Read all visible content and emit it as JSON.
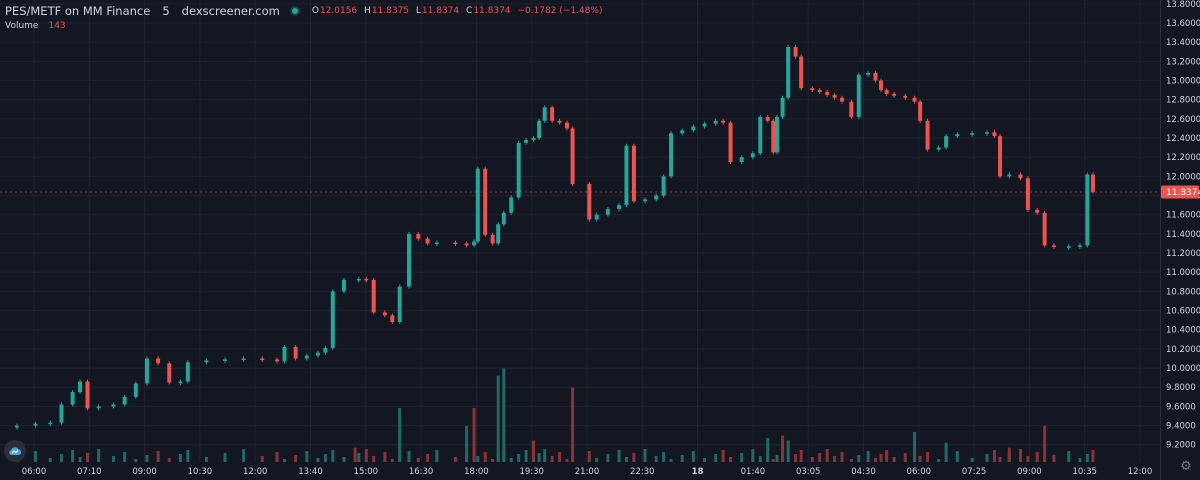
{
  "legend": {
    "symbol": "PES/METF on MM Finance",
    "interval": "5",
    "source": "dexscreener.com",
    "open_key": "O",
    "open": "12.0156",
    "high_key": "H",
    "high": "11.8375",
    "low_key": "L",
    "low": "11.8374",
    "close_key": "C",
    "close": "11.8374",
    "change": "−0.1782 (−1.48%)",
    "volume_label": "Volume",
    "volume_value": "143"
  },
  "colors": {
    "background": "#131722",
    "grid": "#1f2330",
    "up": "#26a69a",
    "down": "#ef5350",
    "up_volume": "#1f6a62",
    "down_volume": "#8a3334",
    "axis_text": "#d1d4dc",
    "last_price_line": "#ef5350"
  },
  "icons": {
    "logo": "dexscreener-logo-icon",
    "settings": "gear-icon"
  },
  "chart_data": {
    "type": "candlestick",
    "symbol": "PES/METF",
    "y_axis": {
      "ticks": [
        "13.8000",
        "13.6000",
        "13.4000",
        "13.2000",
        "13.0000",
        "12.8000",
        "12.6000",
        "12.4000",
        "12.2000",
        "12.0000",
        "11.8000",
        "11.6000",
        "11.4000",
        "11.2000",
        "11.0000",
        "10.8000",
        "10.6000",
        "10.4000",
        "10.2000",
        "10.0000",
        "9.8000",
        "9.6000",
        "9.4000",
        "9.2000"
      ],
      "range": [
        9.02,
        13.84
      ]
    },
    "x_axis": {
      "labels": [
        "06:00",
        "07:10",
        "09:00",
        "10:30",
        "12:00",
        "13:40",
        "15:00",
        "16:30",
        "18:00",
        "19:30",
        "21:00",
        "22:30",
        "18",
        "01:40",
        "03:05",
        "04:30",
        "06:00",
        "07:25",
        "09:00",
        "10:35",
        "12:00"
      ],
      "bold_labels": [
        "18"
      ],
      "time_range_hours": [
        0,
        31.1
      ]
    },
    "last_price": 11.8374,
    "last_price_label": "11.8374",
    "grid": true,
    "price_series": [
      {
        "t": 0.0,
        "p": 9.38
      },
      {
        "t": 0.4,
        "p": 9.4
      },
      {
        "t": 0.9,
        "p": 9.42
      },
      {
        "t": 1.3,
        "p": 9.43
      },
      {
        "t": 1.6,
        "p": 9.62
      },
      {
        "t": 1.9,
        "p": 9.75
      },
      {
        "t": 2.1,
        "p": 9.86
      },
      {
        "t": 2.3,
        "p": 9.58
      },
      {
        "t": 2.6,
        "p": 9.6
      },
      {
        "t": 3.0,
        "p": 9.62
      },
      {
        "t": 3.3,
        "p": 9.7
      },
      {
        "t": 3.6,
        "p": 9.84
      },
      {
        "t": 3.9,
        "p": 10.1
      },
      {
        "t": 4.2,
        "p": 10.05
      },
      {
        "t": 4.5,
        "p": 9.85
      },
      {
        "t": 4.8,
        "p": 9.86
      },
      {
        "t": 5.0,
        "p": 10.06
      },
      {
        "t": 5.5,
        "p": 10.08
      },
      {
        "t": 6.0,
        "p": 10.09
      },
      {
        "t": 6.5,
        "p": 10.1
      },
      {
        "t": 7.0,
        "p": 10.09
      },
      {
        "t": 7.4,
        "p": 10.07
      },
      {
        "t": 7.6,
        "p": 10.22
      },
      {
        "t": 7.9,
        "p": 10.1
      },
      {
        "t": 8.2,
        "p": 10.13
      },
      {
        "t": 8.5,
        "p": 10.16
      },
      {
        "t": 8.7,
        "p": 10.21
      },
      {
        "t": 8.9,
        "p": 10.8
      },
      {
        "t": 9.2,
        "p": 10.92
      },
      {
        "t": 9.6,
        "p": 10.93
      },
      {
        "t": 9.8,
        "p": 10.92
      },
      {
        "t": 10.0,
        "p": 10.58
      },
      {
        "t": 10.3,
        "p": 10.55
      },
      {
        "t": 10.5,
        "p": 10.48
      },
      {
        "t": 10.7,
        "p": 10.85
      },
      {
        "t": 10.95,
        "p": 11.4
      },
      {
        "t": 11.2,
        "p": 11.35
      },
      {
        "t": 11.45,
        "p": 11.3
      },
      {
        "t": 11.7,
        "p": 11.31
      },
      {
        "t": 12.2,
        "p": 11.3
      },
      {
        "t": 12.5,
        "p": 11.28
      },
      {
        "t": 12.7,
        "p": 11.32
      },
      {
        "t": 12.8,
        "p": 12.08
      },
      {
        "t": 13.0,
        "p": 11.39
      },
      {
        "t": 13.2,
        "p": 11.3
      },
      {
        "t": 13.35,
        "p": 11.5
      },
      {
        "t": 13.5,
        "p": 11.62
      },
      {
        "t": 13.7,
        "p": 11.78
      },
      {
        "t": 13.9,
        "p": 12.35
      },
      {
        "t": 14.1,
        "p": 12.38
      },
      {
        "t": 14.3,
        "p": 12.4
      },
      {
        "t": 14.45,
        "p": 12.58
      },
      {
        "t": 14.6,
        "p": 12.72
      },
      {
        "t": 14.8,
        "p": 12.58
      },
      {
        "t": 15.0,
        "p": 12.56
      },
      {
        "t": 15.2,
        "p": 12.5
      },
      {
        "t": 15.35,
        "p": 11.92
      },
      {
        "t": 15.8,
        "p": 11.55
      },
      {
        "t": 16.0,
        "p": 11.6
      },
      {
        "t": 16.3,
        "p": 11.66
      },
      {
        "t": 16.6,
        "p": 11.7
      },
      {
        "t": 16.8,
        "p": 12.32
      },
      {
        "t": 17.0,
        "p": 11.74
      },
      {
        "t": 17.3,
        "p": 11.76
      },
      {
        "t": 17.6,
        "p": 11.8
      },
      {
        "t": 17.8,
        "p": 12.0
      },
      {
        "t": 18.0,
        "p": 12.45
      },
      {
        "t": 18.3,
        "p": 12.48
      },
      {
        "t": 18.6,
        "p": 12.52
      },
      {
        "t": 18.9,
        "p": 12.55
      },
      {
        "t": 19.2,
        "p": 12.58
      },
      {
        "t": 19.4,
        "p": 12.56
      },
      {
        "t": 19.6,
        "p": 12.15
      },
      {
        "t": 19.9,
        "p": 12.2
      },
      {
        "t": 20.2,
        "p": 12.24
      },
      {
        "t": 20.4,
        "p": 12.62
      },
      {
        "t": 20.6,
        "p": 12.58
      },
      {
        "t": 20.75,
        "p": 12.25
      },
      {
        "t": 20.85,
        "p": 12.62
      },
      {
        "t": 21.0,
        "p": 12.82
      },
      {
        "t": 21.15,
        "p": 13.35
      },
      {
        "t": 21.35,
        "p": 13.25
      },
      {
        "t": 21.5,
        "p": 12.92
      },
      {
        "t": 21.8,
        "p": 12.9
      },
      {
        "t": 22.0,
        "p": 12.88
      },
      {
        "t": 22.2,
        "p": 12.85
      },
      {
        "t": 22.4,
        "p": 12.82
      },
      {
        "t": 22.6,
        "p": 12.78
      },
      {
        "t": 22.85,
        "p": 12.62
      },
      {
        "t": 23.05,
        "p": 13.06
      },
      {
        "t": 23.3,
        "p": 13.08
      },
      {
        "t": 23.5,
        "p": 13.0
      },
      {
        "t": 23.65,
        "p": 12.9
      },
      {
        "t": 23.8,
        "p": 12.86
      },
      {
        "t": 24.0,
        "p": 12.84
      },
      {
        "t": 24.3,
        "p": 12.82
      },
      {
        "t": 24.55,
        "p": 12.78
      },
      {
        "t": 24.7,
        "p": 12.58
      },
      {
        "t": 24.9,
        "p": 12.28
      },
      {
        "t": 25.2,
        "p": 12.3
      },
      {
        "t": 25.4,
        "p": 12.42
      },
      {
        "t": 25.7,
        "p": 12.44
      },
      {
        "t": 26.1,
        "p": 12.45
      },
      {
        "t": 26.5,
        "p": 12.46
      },
      {
        "t": 26.7,
        "p": 12.42
      },
      {
        "t": 26.85,
        "p": 12.0
      },
      {
        "t": 27.1,
        "p": 12.02
      },
      {
        "t": 27.4,
        "p": 11.98
      },
      {
        "t": 27.6,
        "p": 11.65
      },
      {
        "t": 27.85,
        "p": 11.62
      },
      {
        "t": 28.05,
        "p": 11.28
      },
      {
        "t": 28.3,
        "p": 11.27
      },
      {
        "t": 28.7,
        "p": 11.27
      },
      {
        "t": 29.0,
        "p": 11.28
      },
      {
        "t": 29.2,
        "p": 12.02
      },
      {
        "t": 29.35,
        "p": 11.84
      }
    ],
    "volume_spikes": [
      {
        "t": 10.7,
        "v": 0.45,
        "dir": "up"
      },
      {
        "t": 12.5,
        "v": 0.3,
        "dir": "up"
      },
      {
        "t": 12.7,
        "v": 0.45,
        "dir": "down"
      },
      {
        "t": 13.35,
        "v": 0.72,
        "dir": "up"
      },
      {
        "t": 13.5,
        "v": 0.78,
        "dir": "up"
      },
      {
        "t": 15.35,
        "v": 0.62,
        "dir": "down"
      },
      {
        "t": 14.3,
        "v": 0.18,
        "dir": "down"
      },
      {
        "t": 20.6,
        "v": 0.2,
        "dir": "up"
      },
      {
        "t": 21.0,
        "v": 0.22,
        "dir": "down"
      },
      {
        "t": 21.15,
        "v": 0.18,
        "dir": "up"
      },
      {
        "t": 24.55,
        "v": 0.25,
        "dir": "up"
      },
      {
        "t": 25.4,
        "v": 0.16,
        "dir": "up"
      },
      {
        "t": 28.05,
        "v": 0.3,
        "dir": "down"
      },
      {
        "t": 27.1,
        "v": 0.12,
        "dir": "down"
      },
      {
        "t": 9.5,
        "v": 0.12,
        "dir": "down"
      }
    ]
  }
}
